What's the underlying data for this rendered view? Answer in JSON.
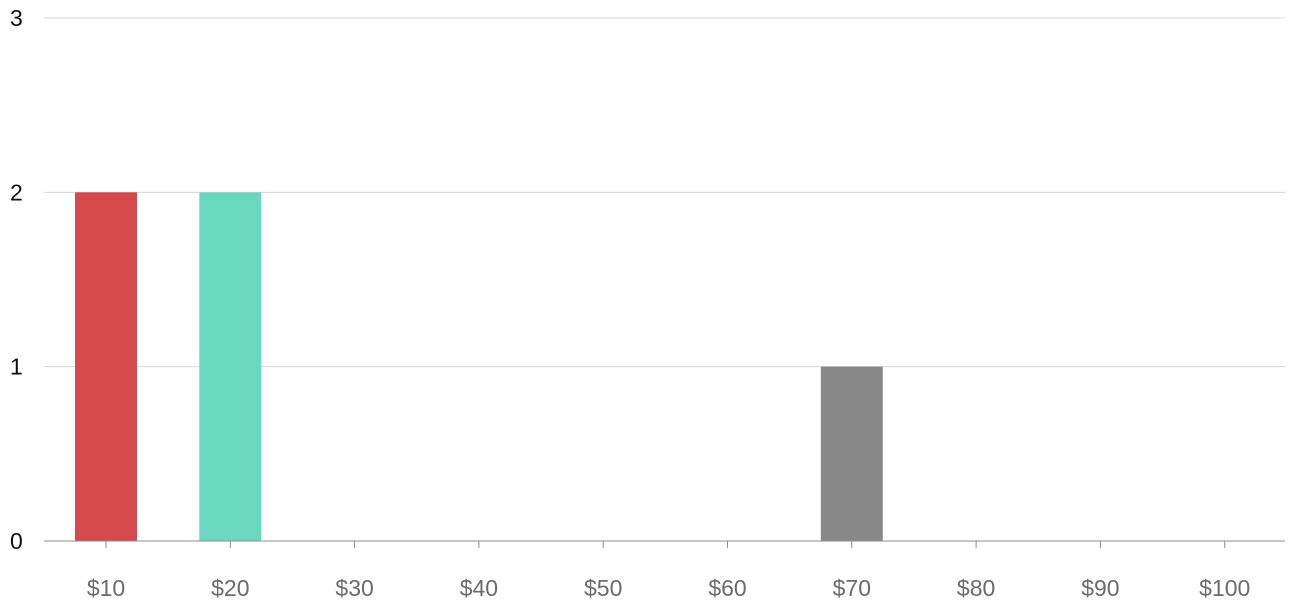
{
  "chart_data": {
    "type": "bar",
    "categories": [
      "$10",
      "$20",
      "$30",
      "$40",
      "$50",
      "$60",
      "$70",
      "$80",
      "$90",
      "$100"
    ],
    "values": [
      2,
      2,
      0,
      0,
      0,
      0,
      1,
      0,
      0,
      0
    ],
    "colors": [
      "#d64a4d",
      "#69d8be",
      null,
      null,
      null,
      null,
      null,
      "#a08064",
      null,
      null
    ],
    "title": "",
    "xlabel": "",
    "ylabel": "",
    "ylim": [
      0,
      3
    ],
    "yticks": [
      "0",
      "1",
      "2",
      "3"
    ],
    "grid": true,
    "legend": "none"
  }
}
